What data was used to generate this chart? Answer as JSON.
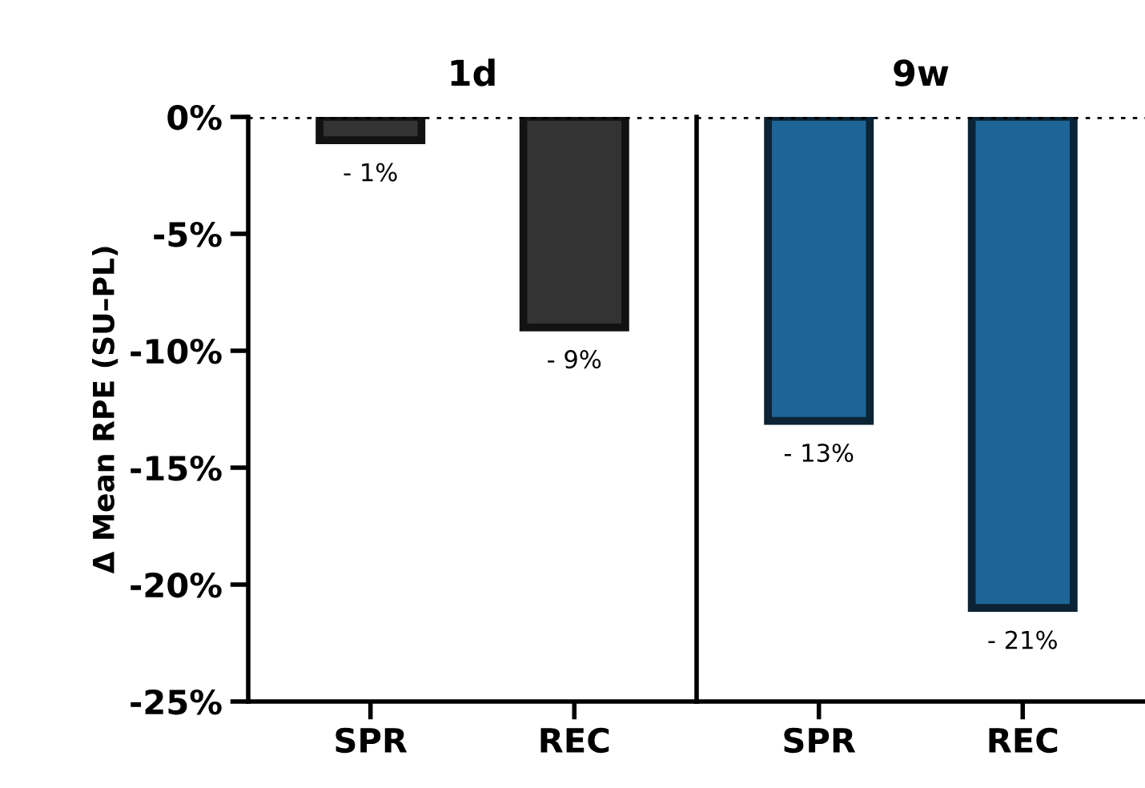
{
  "chart_data": [
    {
      "type": "bar",
      "title": "1d",
      "ylabel": "Δ Mean RPE (SU–PL)",
      "categories": [
        "SPR",
        "REC"
      ],
      "series": [
        {
          "color": "#333333",
          "values": [
            -1,
            -9
          ],
          "value_labels": [
            "- 1%",
            "- 9%"
          ]
        }
      ],
      "ylim": [
        -25,
        0
      ],
      "yticks": [
        {
          "value": 0,
          "label": "0%"
        },
        {
          "value": -5,
          "label": "-5%"
        },
        {
          "value": -10,
          "label": "-10%"
        },
        {
          "value": -15,
          "label": "-15%"
        },
        {
          "value": -20,
          "label": "-20%"
        },
        {
          "value": -25,
          "label": "-25%"
        }
      ],
      "ref_lines": [
        {
          "axis": "y",
          "value": 0,
          "color": "#000000",
          "line_style": "dotted"
        }
      ],
      "grid": false,
      "legend": false
    },
    {
      "type": "bar",
      "title": "9w",
      "categories": [
        "SPR",
        "REC"
      ],
      "series": [
        {
          "color": "#1f6496",
          "values": [
            -13,
            -21
          ],
          "value_labels": [
            "- 13%",
            "- 21%"
          ]
        }
      ],
      "ylim": [
        -25,
        0
      ],
      "tick_labels": "x",
      "ref_lines": [
        {
          "axis": "y",
          "value": 0,
          "color": "#000000",
          "line_style": "dotted"
        }
      ],
      "grid": false,
      "legend": false
    }
  ]
}
